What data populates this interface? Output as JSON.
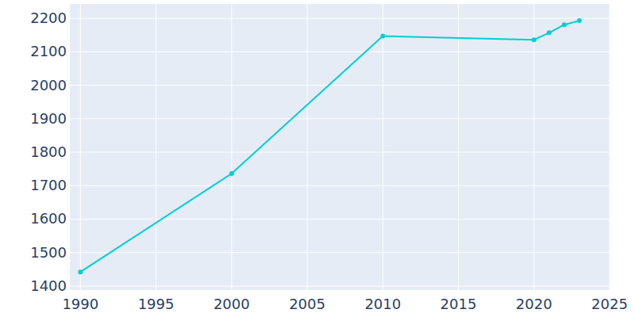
{
  "chart_data": {
    "type": "line",
    "x": [
      1990,
      2000,
      2010,
      2020,
      2021,
      2022,
      2023
    ],
    "values": [
      1442,
      1736,
      2147,
      2136,
      2157,
      2181,
      2193
    ],
    "color": "#00ced1",
    "marker": "circle",
    "line_style": "solid",
    "xlim": [
      1989.3,
      2025
    ],
    "xticks": [
      1990,
      1995,
      2000,
      2005,
      2010,
      2015,
      2020,
      2025
    ],
    "ylim": [
      1388,
      2243
    ],
    "yticks": [
      1400,
      1500,
      1600,
      1700,
      1800,
      1900,
      2000,
      2100,
      2200
    ],
    "grid": true
  }
}
